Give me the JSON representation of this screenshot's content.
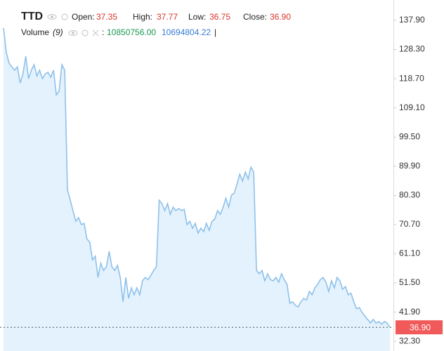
{
  "chart_data": {
    "type": "area",
    "symbol": "TTD",
    "fields": [
      {
        "label": "Open:",
        "value": "37.35"
      },
      {
        "label": "High:",
        "value": "37.77"
      },
      {
        "label": "Low:",
        "value": "36.75"
      },
      {
        "label": "Close:",
        "value": "36.90"
      }
    ],
    "volume": {
      "label": "Volume",
      "period": "(9)",
      "sep": ":",
      "values": [
        "10850756.00",
        "10694804.22"
      ],
      "cursor": "|"
    },
    "line_color": "#8ec1ea",
    "fill_color": "#e4f2fd",
    "values": [
      135.4,
      127.3,
      123.8,
      122.6,
      121.5,
      122.6,
      117.3,
      120.3,
      126.1,
      118.7,
      121.5,
      123.3,
      119.6,
      121.5,
      118.7,
      120.3,
      120.8,
      119.2,
      121.5,
      113.4,
      114.6,
      123.3,
      121.5,
      82.2,
      78.7,
      75.3,
      71.8,
      73.0,
      70.7,
      71.1,
      66.0,
      64.9,
      59.1,
      60.3,
      53.3,
      58.0,
      55.6,
      56.8,
      61.9,
      56.8,
      55.6,
      57.3,
      53.3,
      45.3,
      53.3,
      46.4,
      49.9,
      47.6,
      49.9,
      47.6,
      52.2,
      53.3,
      52.6,
      54.0,
      55.6,
      56.8,
      78.7,
      77.6,
      75.3,
      77.6,
      74.1,
      76.4,
      75.3,
      76.0,
      75.3,
      75.7,
      70.7,
      71.8,
      69.5,
      71.1,
      67.9,
      69.5,
      68.4,
      71.1,
      68.8,
      71.8,
      72.5,
      75.3,
      74.1,
      76.4,
      79.4,
      76.4,
      80.4,
      81.0,
      84.1,
      87.3,
      85.0,
      88.0,
      85.7,
      89.6,
      88.0,
      55.6,
      54.5,
      55.6,
      52.2,
      54.5,
      52.6,
      52.2,
      53.3,
      51.7,
      54.5,
      52.6,
      51.0,
      44.8,
      45.3,
      44.1,
      43.6,
      45.3,
      46.4,
      45.9,
      48.7,
      47.6,
      49.9,
      51.0,
      52.6,
      53.3,
      51.7,
      48.7,
      52.2,
      49.9,
      53.3,
      52.2,
      49.4,
      50.3,
      47.6,
      48.1,
      45.3,
      43.0,
      43.4,
      41.8,
      40.6,
      39.5,
      38.3,
      39.5,
      38.3,
      38.8,
      37.9,
      38.8,
      38.3,
      36.9
    ],
    "ylim": [
      29.1,
      144.6
    ],
    "yticks": [
      {
        "value": 32.3,
        "label": "32.30"
      },
      {
        "value": 41.9,
        "label": "41.90"
      },
      {
        "value": 51.5,
        "label": "51.50"
      },
      {
        "value": 61.1,
        "label": "61.10"
      },
      {
        "value": 70.7,
        "label": "70.70"
      },
      {
        "value": 80.3,
        "label": "80.30"
      },
      {
        "value": 89.9,
        "label": "89.90"
      },
      {
        "value": 99.5,
        "label": "99.50"
      },
      {
        "value": 109.1,
        "label": "109.10"
      },
      {
        "value": 118.7,
        "label": "118.70"
      },
      {
        "value": 128.3,
        "label": "128.30"
      },
      {
        "value": 137.9,
        "label": "137.90"
      }
    ],
    "last_price": {
      "value": 36.9,
      "label": "36.90",
      "color": "#f05a5a"
    }
  }
}
